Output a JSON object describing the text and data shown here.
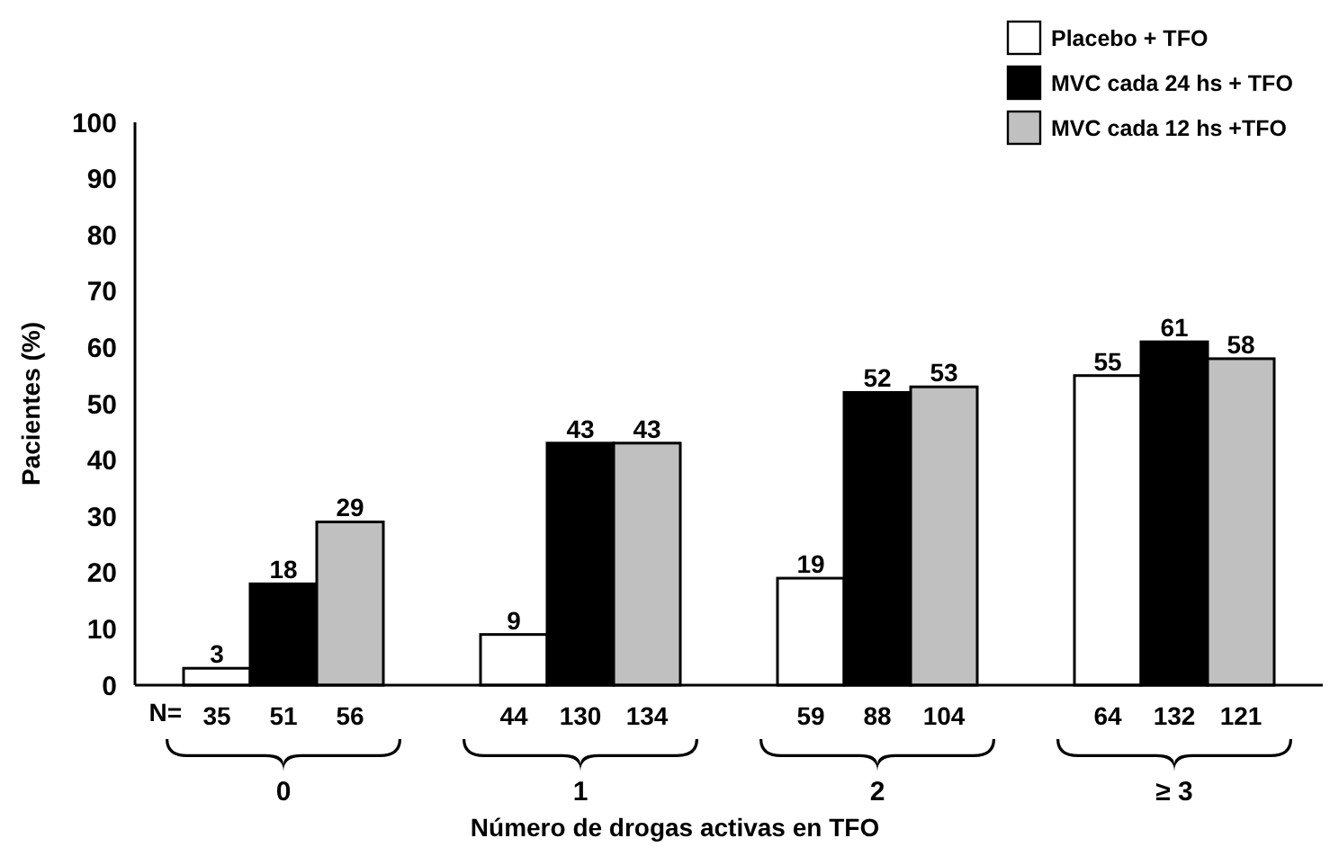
{
  "chart_data": {
    "type": "bar",
    "xlabel": "Número de drogas activas en TFO",
    "ylabel": "Pacientes (%)",
    "categories": [
      "0",
      "1",
      "2",
      "≥ 3"
    ],
    "series": [
      {
        "name": "Placebo + TFO",
        "color": "#ffffff",
        "values": [
          3,
          9,
          19,
          55
        ]
      },
      {
        "name": "MVC cada 24 hs + TFO",
        "color": "#000000",
        "values": [
          18,
          43,
          52,
          61
        ]
      },
      {
        "name": "MVC cada 12 hs +TFO",
        "color": "#c0c0c0",
        "values": [
          29,
          43,
          53,
          58
        ]
      }
    ],
    "ylim": [
      0,
      100
    ],
    "yticks": [
      0,
      10,
      20,
      30,
      40,
      50,
      60,
      70,
      80,
      90,
      100
    ],
    "grid": false,
    "legend": "top right",
    "data_labels": true,
    "annotations": [
      "N=",
      "35",
      "51",
      "56",
      "44",
      "130",
      "134",
      "59",
      "88",
      "104",
      "64",
      "132",
      "121"
    ]
  }
}
